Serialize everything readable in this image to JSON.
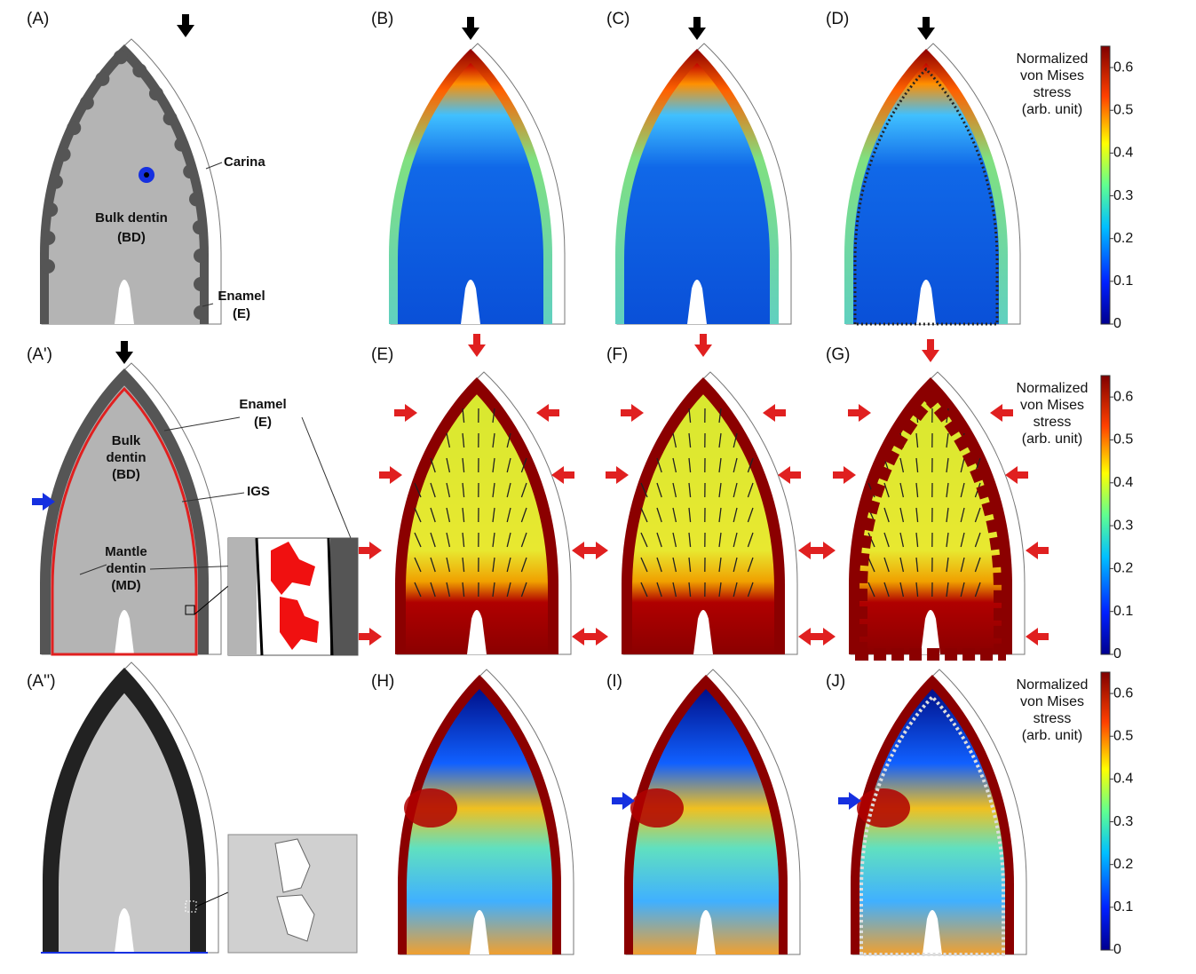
{
  "panels": [
    {
      "label": "(A)"
    },
    {
      "label": "(B)"
    },
    {
      "label": "(C)"
    },
    {
      "label": "(D)"
    },
    {
      "label": "(A')"
    },
    {
      "label": "(E)"
    },
    {
      "label": "(F)"
    },
    {
      "label": "(G)"
    },
    {
      "label": "(A'')"
    },
    {
      "label": "(H)"
    },
    {
      "label": "(I)"
    },
    {
      "label": "(J)"
    }
  ],
  "annotations_A": [
    "Carina",
    "Bulk dentin",
    "(BD)",
    "Enamel",
    "(E)"
  ],
  "annotations_A_prime": [
    "Enamel",
    "(E)",
    "Bulk",
    "dentin",
    "(BD)",
    "IGS",
    "Mantle",
    "dentin",
    "(MD)"
  ],
  "colorbars": [
    {
      "title": [
        "Normalized",
        "von Mises",
        "stress",
        "(arb. unit)"
      ],
      "range": [
        0,
        0.65
      ],
      "ticks": [
        0,
        0.1,
        0.2,
        0.3,
        0.4,
        0.5,
        0.6
      ]
    },
    {
      "title": [
        "Normalized",
        "von Mises",
        "stress",
        "(arb. unit)"
      ],
      "range": [
        0,
        0.65
      ],
      "ticks": [
        0,
        0.1,
        0.2,
        0.3,
        0.4,
        0.5,
        0.6
      ]
    },
    {
      "title": [
        "Normalized",
        "von Mises",
        "stress",
        "(arb. unit)"
      ],
      "range": [
        0,
        0.65
      ],
      "ticks": [
        0,
        0.1,
        0.2,
        0.3,
        0.4,
        0.5,
        0.6
      ]
    }
  ]
}
